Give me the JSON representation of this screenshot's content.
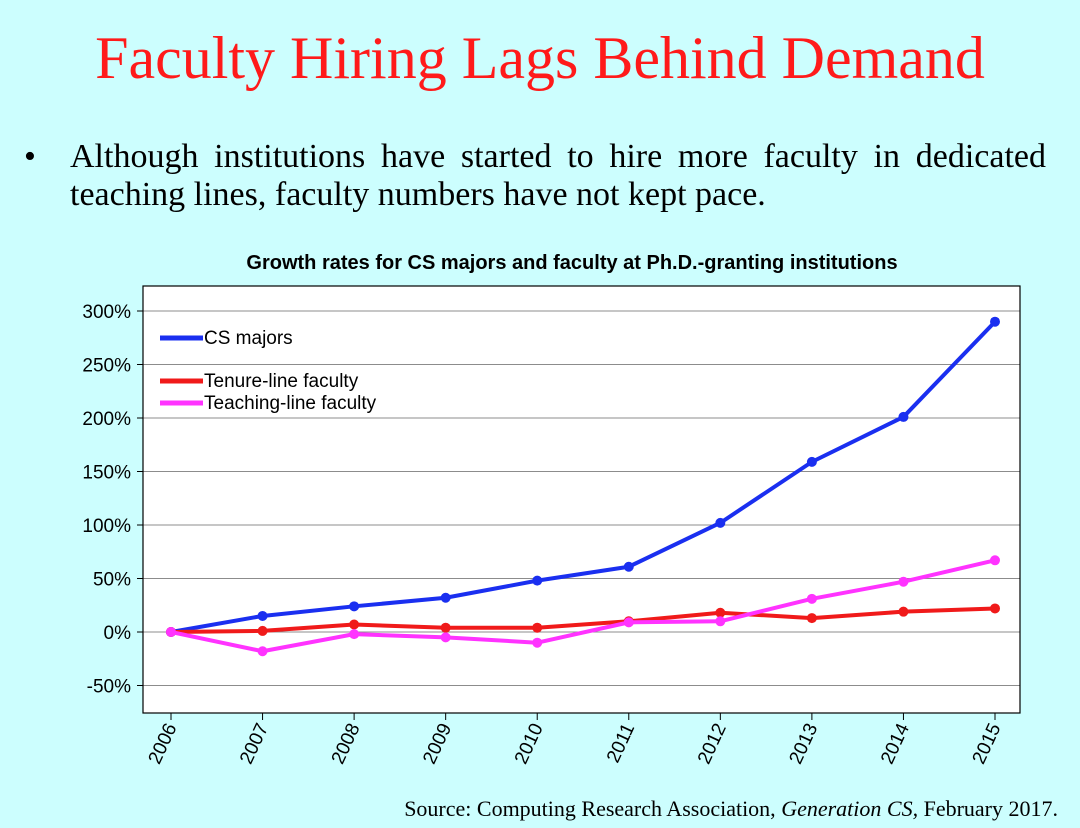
{
  "slide": {
    "title": "Faculty Hiring Lags Behind Demand",
    "bullet": "Although institutions have started to hire more faculty in dedicated teaching lines, faculty numbers have not kept pace.",
    "source_prefix": "Source: Computing Research Association, ",
    "source_italic": "Generation CS,",
    "source_suffix": " February 2017."
  },
  "colors": {
    "background": "#ccfefe",
    "title": "#ff1a1a",
    "cs_majors": "#1a2ff0",
    "tenure": "#f01a1a",
    "teaching": "#ff33ff"
  },
  "chart_data": {
    "type": "line",
    "title": "Growth rates for CS majors and faculty at Ph.D.-granting institutions",
    "xlabel": "",
    "ylabel": "",
    "x": [
      "2006",
      "2007",
      "2008",
      "2009",
      "2010",
      "2011",
      "2012",
      "2013",
      "2014",
      "2015"
    ],
    "ylim": [
      -75,
      300
    ],
    "yticks": [
      -50,
      0,
      50,
      100,
      150,
      200,
      250,
      300
    ],
    "ytick_labels": [
      "-50%",
      "0%",
      "50%",
      "100%",
      "150%",
      "200%",
      "250%",
      "300%"
    ],
    "grid": true,
    "legend_position": "top-left",
    "series": [
      {
        "name": "CS majors",
        "color": "#1a2ff0",
        "values": [
          0,
          15,
          24,
          32,
          48,
          61,
          102,
          159,
          201,
          290
        ]
      },
      {
        "name": "Tenure-line faculty",
        "color": "#f01a1a",
        "values": [
          0,
          1,
          7,
          4,
          4,
          10,
          18,
          13,
          19,
          22
        ]
      },
      {
        "name": "Teaching-line faculty",
        "color": "#ff33ff",
        "values": [
          0,
          -18,
          -2,
          -5,
          -10,
          9,
          10,
          31,
          47,
          67
        ]
      }
    ]
  }
}
